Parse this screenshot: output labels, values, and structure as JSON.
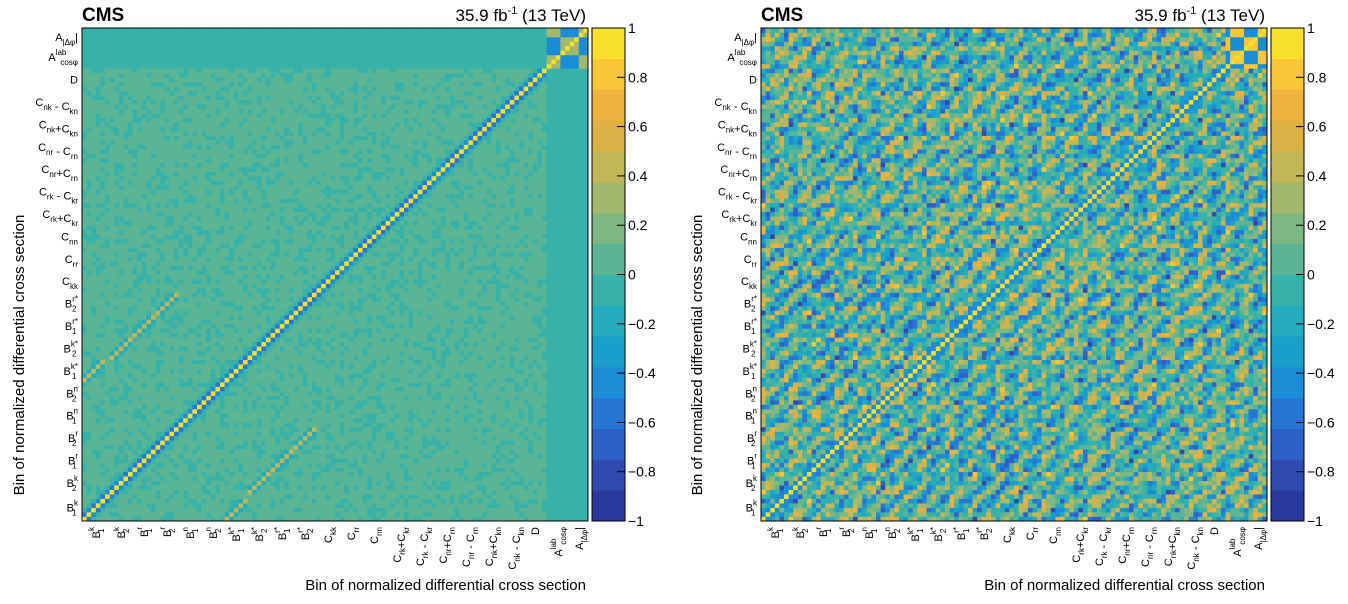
{
  "chart_data": [
    {
      "type": "heatmap",
      "id": "left",
      "experiment": "CMS",
      "lumi": "35.9 fb",
      "lumi_sup": "-1",
      "energy": " (13 TeV)",
      "xlabel": "Bin of normalized differential cross section",
      "ylabel": "Bin of normalized differential cross section",
      "zlim": [
        -1,
        1
      ],
      "colorbar_ticks": [
        "1",
        "0.8",
        "0.6",
        "0.4",
        "0.2",
        "0",
        "−0.2",
        "−0.4",
        "−0.6",
        "−0.8",
        "−1"
      ],
      "n_bins": 110,
      "note": ""
    },
    {
      "type": "heatmap",
      "id": "right",
      "experiment": "CMS",
      "lumi": "35.9 fb",
      "lumi_sup": "-1",
      "energy": " (13 TeV)",
      "xlabel": "Bin of normalized differential cross section",
      "ylabel": "Bin of normalized differential cross section",
      "zlim": [
        -1,
        1
      ],
      "colorbar_ticks": [
        "1",
        "0.8",
        "0.6",
        "0.4",
        "0.2",
        "0",
        "−0.2",
        "−0.4",
        "−0.6",
        "−0.8",
        "−1"
      ],
      "n_bins": 110
    }
  ],
  "categories": [
    {
      "main": "B",
      "sub": "1",
      "sup": "k"
    },
    {
      "main": "B",
      "sub": "2",
      "sup": "k"
    },
    {
      "main": "B",
      "sub": "1",
      "sup": "r"
    },
    {
      "main": "B",
      "sub": "2",
      "sup": "r"
    },
    {
      "main": "B",
      "sub": "1",
      "sup": "n"
    },
    {
      "main": "B",
      "sub": "2",
      "sup": "n"
    },
    {
      "main": "B",
      "sub": "1",
      "sup": "k*"
    },
    {
      "main": "B",
      "sub": "2",
      "sup": "k*"
    },
    {
      "main": "B",
      "sub": "1",
      "sup": "r*"
    },
    {
      "main": "B",
      "sub": "2",
      "sup": "r*"
    },
    {
      "main": "C",
      "sub": "kk",
      "sup": ""
    },
    {
      "main": "C",
      "sub": "rr",
      "sup": ""
    },
    {
      "main": "C",
      "sub": "nn",
      "sup": ""
    },
    {
      "main": "C",
      "sub": "rk",
      "sup": "",
      "op": "+",
      "main2": "C",
      "sub2": "kr"
    },
    {
      "main": "C",
      "sub": "rk",
      "sup": "",
      "op": " - ",
      "main2": "C",
      "sub2": "kr"
    },
    {
      "main": "C",
      "sub": "nr",
      "sup": "",
      "op": "+",
      "main2": "C",
      "sub2": "rn"
    },
    {
      "main": "C",
      "sub": "nr",
      "sup": "",
      "op": " - ",
      "main2": "C",
      "sub2": "rn"
    },
    {
      "main": "C",
      "sub": "nk",
      "sup": "",
      "op": "+",
      "main2": "C",
      "sub2": "kn"
    },
    {
      "main": "C",
      "sub": "nk",
      "sup": "",
      "op": " - ",
      "main2": "C",
      "sub2": "kn"
    },
    {
      "main": "D",
      "sub": "",
      "sup": ""
    },
    {
      "main": "A",
      "sub": "cosφ",
      "sup": "lab"
    },
    {
      "main": "A",
      "sub": "|Δφ",
      "sup": "",
      "sub_end": "|"
    }
  ],
  "palette": [
    "#2a3a9c",
    "#2f4bb0",
    "#2e60c8",
    "#2776d6",
    "#1b8dd6",
    "#1a9fcb",
    "#24acbd",
    "#38b2a8",
    "#5ab595",
    "#7eb782",
    "#a2b86c",
    "#c2b657",
    "#dcb246",
    "#eeb33c",
    "#f8c636",
    "#f9e02a"
  ]
}
